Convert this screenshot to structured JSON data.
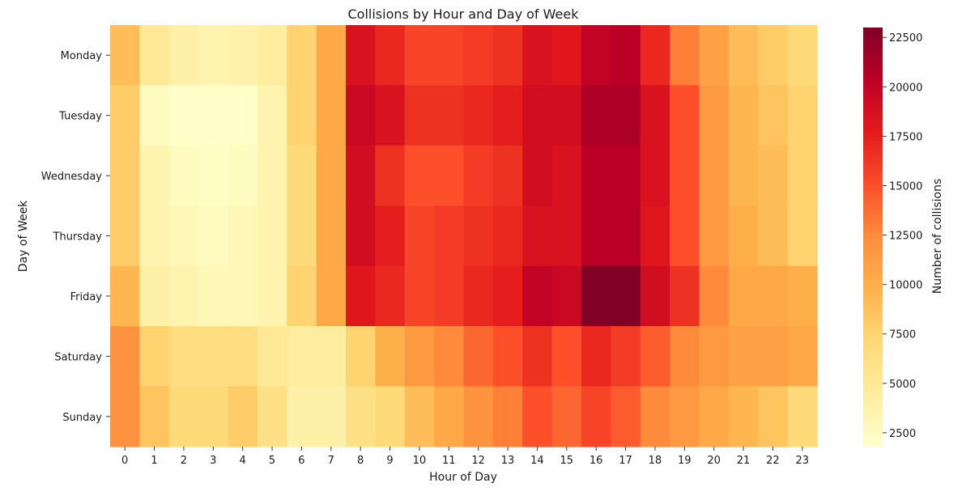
{
  "chart_data": {
    "type": "heatmap",
    "title": "Collisions by Hour and Day of Week",
    "xlabel": "Hour of Day",
    "ylabel": "Day of Week",
    "x": [
      "0",
      "1",
      "2",
      "3",
      "4",
      "5",
      "6",
      "7",
      "8",
      "9",
      "10",
      "11",
      "12",
      "13",
      "14",
      "15",
      "16",
      "17",
      "18",
      "19",
      "20",
      "21",
      "22",
      "23"
    ],
    "y": [
      "Monday",
      "Tuesday",
      "Wednesday",
      "Thursday",
      "Friday",
      "Saturday",
      "Sunday"
    ],
    "values": [
      [
        9000,
        5000,
        4000,
        3500,
        3800,
        4500,
        7500,
        10500,
        18500,
        17000,
        15500,
        15500,
        16000,
        16500,
        18500,
        18000,
        20000,
        20500,
        17000,
        13000,
        11000,
        9000,
        8000,
        7000
      ],
      [
        8000,
        2500,
        2000,
        2000,
        2000,
        3500,
        7500,
        10500,
        19500,
        18500,
        16500,
        16500,
        17000,
        17500,
        19000,
        19000,
        21000,
        21000,
        18500,
        15000,
        11500,
        9500,
        8500,
        7500
      ],
      [
        8000,
        3500,
        2500,
        2300,
        2500,
        3500,
        7000,
        10500,
        19000,
        16500,
        15000,
        15000,
        16000,
        16500,
        19000,
        18500,
        20500,
        20500,
        18500,
        15000,
        11500,
        9500,
        9000,
        7500
      ],
      [
        8000,
        3500,
        3000,
        2500,
        3000,
        3500,
        7000,
        10500,
        19000,
        17500,
        15500,
        16000,
        16500,
        17000,
        18500,
        18500,
        20500,
        20500,
        18000,
        15000,
        11500,
        10000,
        9000,
        7500
      ],
      [
        9500,
        4000,
        3500,
        3000,
        3000,
        3500,
        7500,
        10500,
        18000,
        17000,
        15500,
        16000,
        17000,
        17500,
        20000,
        19500,
        23000,
        23000,
        19000,
        16500,
        12500,
        10500,
        10500,
        10000
      ],
      [
        12000,
        7500,
        6500,
        6500,
        6500,
        5000,
        4500,
        4500,
        7500,
        10000,
        11500,
        12500,
        14000,
        15000,
        16500,
        15000,
        17000,
        16000,
        14500,
        12500,
        11500,
        11000,
        11000,
        10500
      ],
      [
        12000,
        8500,
        7000,
        7000,
        8000,
        6000,
        4000,
        4000,
        6000,
        7000,
        9000,
        10500,
        12000,
        13000,
        15000,
        14000,
        15500,
        14500,
        12500,
        11500,
        10500,
        9500,
        8500,
        7000
      ]
    ],
    "colorbar": {
      "label": "Number of collisions",
      "ticks": [
        2500,
        5000,
        7500,
        10000,
        12500,
        15000,
        17500,
        20000,
        22500
      ],
      "range": [
        1800,
        23000
      ]
    },
    "colormap": [
      "#ffffcc",
      "#ffeda0",
      "#fed976",
      "#feb24c",
      "#fd8d3c",
      "#fc4e2a",
      "#e31a1c",
      "#bd0026",
      "#800026"
    ]
  }
}
